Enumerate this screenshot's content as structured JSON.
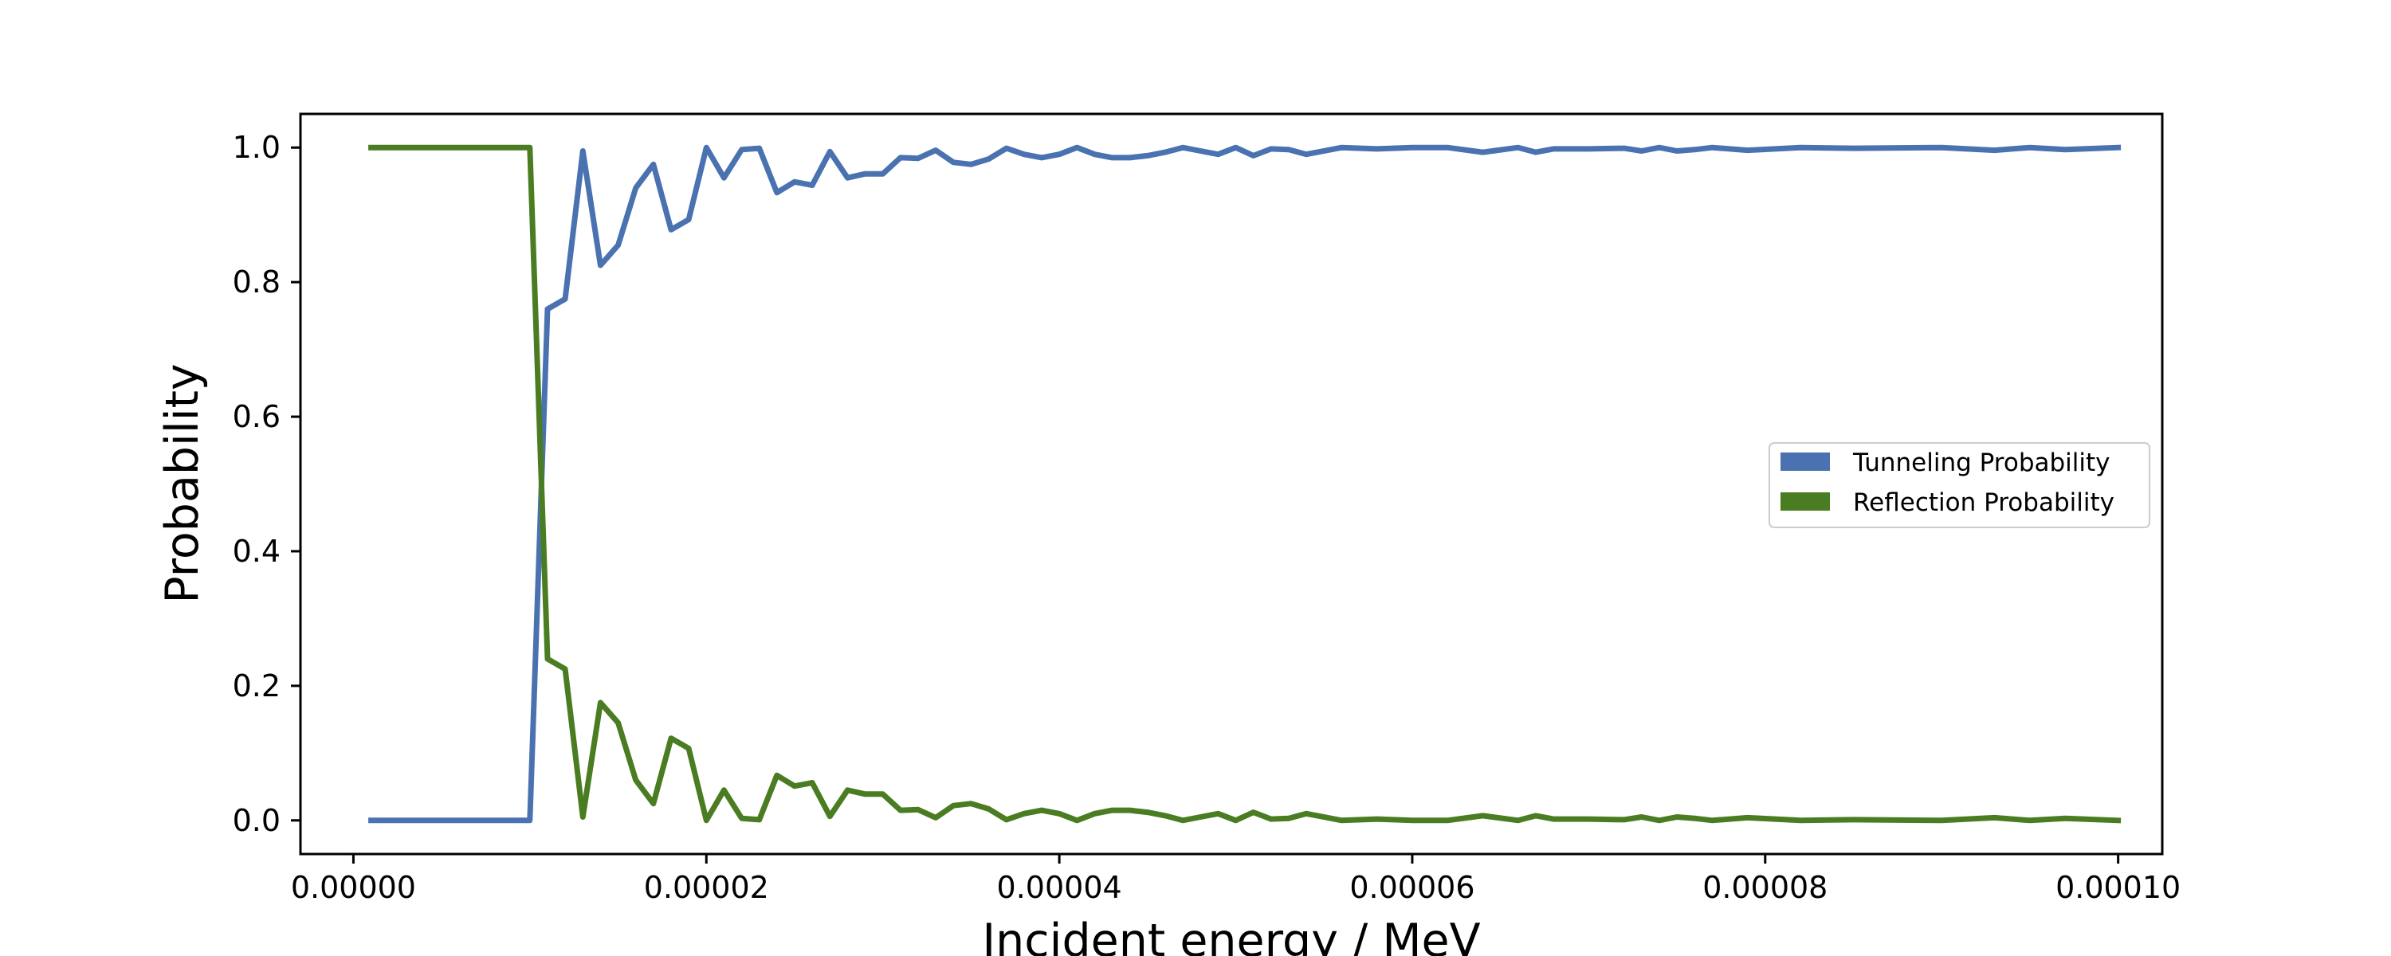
{
  "chart_data": {
    "type": "line",
    "xlabel": "Incident energy / MeV",
    "ylabel": "Probability",
    "xlim": [
      -3e-06,
      0.0001025
    ],
    "ylim": [
      -0.05,
      1.05
    ],
    "xticks": [
      0.0,
      2e-05,
      4e-05,
      6e-05,
      8e-05,
      0.0001
    ],
    "xtick_labels": [
      "0.00000",
      "0.00002",
      "0.00004",
      "0.00006",
      "0.00008",
      "0.00010"
    ],
    "yticks": [
      0.0,
      0.2,
      0.4,
      0.6,
      0.8,
      1.0
    ],
    "ytick_labels": [
      "0.0",
      "0.2",
      "0.4",
      "0.6",
      "0.8",
      "1.0"
    ],
    "grid": false,
    "legend_position": "center-right",
    "series": [
      {
        "name": "Tunneling Probability",
        "color": "#4a72b0",
        "x": [
          1e-06,
          1e-05,
          1.1e-05,
          1.2e-05,
          1.3e-05,
          1.4e-05,
          1.5e-05,
          1.6e-05,
          1.7e-05,
          1.8e-05,
          1.9e-05,
          2e-05,
          2.1e-05,
          2.2e-05,
          2.3e-05,
          2.4e-05,
          2.5e-05,
          2.6e-05,
          2.7e-05,
          2.8e-05,
          2.9e-05,
          3e-05,
          3.1e-05,
          3.2e-05,
          3.3e-05,
          3.4e-05,
          3.5e-05,
          3.6e-05,
          3.7e-05,
          3.8e-05,
          3.9e-05,
          4e-05,
          4.1e-05,
          4.2e-05,
          4.3e-05,
          4.4e-05,
          4.5e-05,
          4.6e-05,
          4.7e-05,
          4.8e-05,
          4.9e-05,
          5e-05,
          5.1e-05,
          5.2e-05,
          5.3e-05,
          5.4e-05,
          5.6e-05,
          5.8e-05,
          6e-05,
          6.2e-05,
          6.4e-05,
          6.6e-05,
          6.7e-05,
          6.8e-05,
          7e-05,
          7.2e-05,
          7.3e-05,
          7.4e-05,
          7.5e-05,
          7.6e-05,
          7.7e-05,
          7.9e-05,
          8.2e-05,
          8.5e-05,
          9e-05,
          9.3e-05,
          9.5e-05,
          9.7e-05,
          0.0001
        ],
        "y": [
          0.0,
          0.0,
          0.76,
          0.775,
          0.995,
          0.825,
          0.855,
          0.94,
          0.975,
          0.878,
          0.893,
          1.0,
          0.955,
          0.997,
          0.999,
          0.933,
          0.949,
          0.944,
          0.994,
          0.955,
          0.961,
          0.961,
          0.985,
          0.984,
          0.996,
          0.978,
          0.975,
          0.983,
          0.999,
          0.99,
          0.985,
          0.99,
          1.0,
          0.99,
          0.985,
          0.985,
          0.988,
          0.993,
          1.0,
          0.995,
          0.99,
          1.0,
          0.988,
          0.998,
          0.997,
          0.99,
          1.0,
          0.998,
          1.0,
          1.0,
          0.993,
          1.0,
          0.993,
          0.998,
          0.998,
          0.999,
          0.995,
          1.0,
          0.995,
          0.997,
          1.0,
          0.996,
          1.0,
          0.999,
          1.0,
          0.996,
          1.0,
          0.997,
          1.0
        ]
      },
      {
        "name": "Reflection Probability",
        "color": "#4a7d22",
        "x": [
          1e-06,
          1e-05,
          1.1e-05,
          1.2e-05,
          1.3e-05,
          1.4e-05,
          1.5e-05,
          1.6e-05,
          1.7e-05,
          1.8e-05,
          1.9e-05,
          2e-05,
          2.1e-05,
          2.2e-05,
          2.3e-05,
          2.4e-05,
          2.5e-05,
          2.6e-05,
          2.7e-05,
          2.8e-05,
          2.9e-05,
          3e-05,
          3.1e-05,
          3.2e-05,
          3.3e-05,
          3.4e-05,
          3.5e-05,
          3.6e-05,
          3.7e-05,
          3.8e-05,
          3.9e-05,
          4e-05,
          4.1e-05,
          4.2e-05,
          4.3e-05,
          4.4e-05,
          4.5e-05,
          4.6e-05,
          4.7e-05,
          4.8e-05,
          4.9e-05,
          5e-05,
          5.1e-05,
          5.2e-05,
          5.3e-05,
          5.4e-05,
          5.6e-05,
          5.8e-05,
          6e-05,
          6.2e-05,
          6.4e-05,
          6.6e-05,
          6.7e-05,
          6.8e-05,
          7e-05,
          7.2e-05,
          7.3e-05,
          7.4e-05,
          7.5e-05,
          7.6e-05,
          7.7e-05,
          7.9e-05,
          8.2e-05,
          8.5e-05,
          9e-05,
          9.3e-05,
          9.5e-05,
          9.7e-05,
          0.0001
        ],
        "y": [
          1.0,
          1.0,
          0.24,
          0.225,
          0.005,
          0.175,
          0.145,
          0.06,
          0.025,
          0.122,
          0.107,
          0.0,
          0.045,
          0.003,
          0.001,
          0.067,
          0.051,
          0.056,
          0.006,
          0.045,
          0.039,
          0.039,
          0.015,
          0.016,
          0.004,
          0.022,
          0.025,
          0.017,
          0.001,
          0.01,
          0.015,
          0.01,
          0.0,
          0.01,
          0.015,
          0.015,
          0.012,
          0.007,
          0.0,
          0.005,
          0.01,
          0.0,
          0.012,
          0.002,
          0.003,
          0.01,
          0.0,
          0.002,
          0.0,
          0.0,
          0.007,
          0.0,
          0.007,
          0.002,
          0.002,
          0.001,
          0.005,
          0.0,
          0.005,
          0.003,
          0.0,
          0.004,
          0.0,
          0.001,
          0.0,
          0.004,
          0.0,
          0.003,
          0.0
        ]
      }
    ]
  }
}
